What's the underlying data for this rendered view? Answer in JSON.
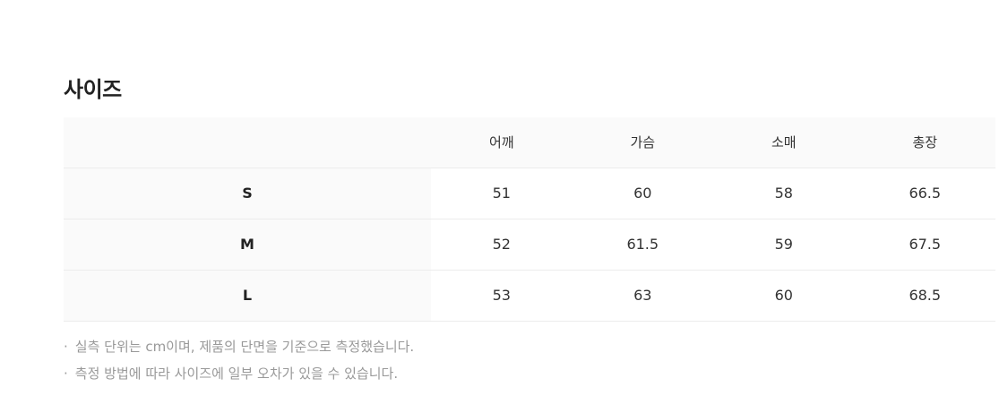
{
  "title": "사이즈",
  "table": {
    "columns": [
      "",
      "어깨",
      "가슴",
      "소매",
      "총장"
    ],
    "rows": [
      {
        "size": "S",
        "values": [
          "51",
          "60",
          "58",
          "66.5"
        ]
      },
      {
        "size": "M",
        "values": [
          "52",
          "61.5",
          "59",
          "67.5"
        ]
      },
      {
        "size": "L",
        "values": [
          "53",
          "63",
          "60",
          "68.5"
        ]
      }
    ]
  },
  "notes": [
    "실측 단위는 cm이며, 제품의 단면을 기준으로 측정했습니다.",
    "측정 방법에 따라 사이즈에 일부 오차가 있을 수 있습니다."
  ]
}
